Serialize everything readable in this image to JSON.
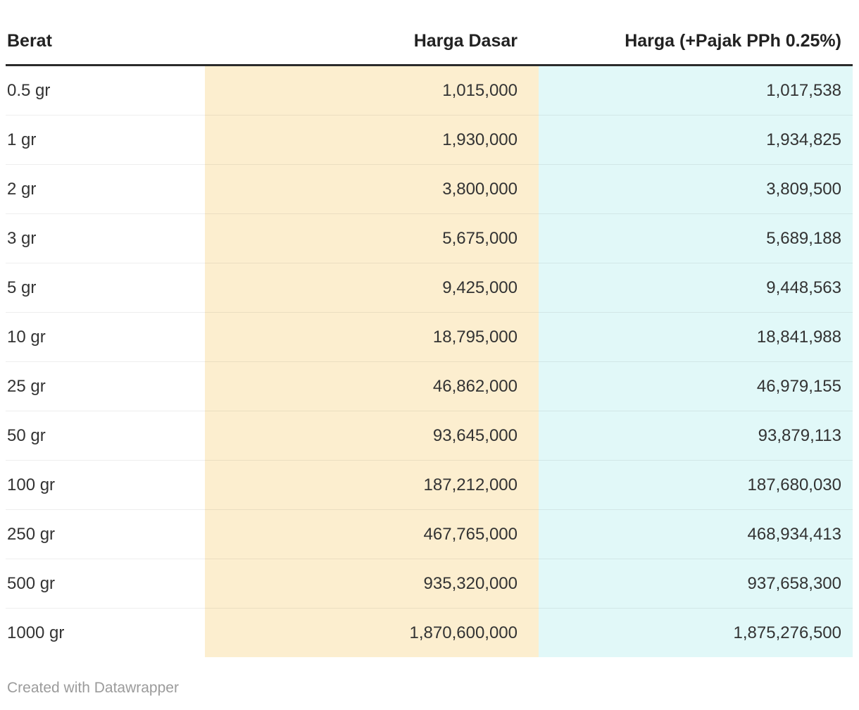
{
  "chart_data": {
    "type": "table",
    "title": "",
    "columns": [
      "Berat",
      "Harga Dasar",
      "Harga (+Pajak PPh 0.25%)"
    ],
    "column_aligns": [
      "left",
      "right",
      "right"
    ],
    "rows": [
      [
        "0.5 gr",
        "1,015,000",
        "1,017,538"
      ],
      [
        "1 gr",
        "1,930,000",
        "1,934,825"
      ],
      [
        "2 gr",
        "3,800,000",
        "3,809,500"
      ],
      [
        "3 gr",
        "5,675,000",
        "5,689,188"
      ],
      [
        "5 gr",
        "9,425,000",
        "9,448,563"
      ],
      [
        "10 gr",
        "18,795,000",
        "18,841,988"
      ],
      [
        "25 gr",
        "46,862,000",
        "46,979,155"
      ],
      [
        "50 gr",
        "93,645,000",
        "93,879,113"
      ],
      [
        "100 gr",
        "187,212,000",
        "187,680,030"
      ],
      [
        "250 gr",
        "467,765,000",
        "468,934,413"
      ],
      [
        "500 gr",
        "935,320,000",
        "937,658,300"
      ],
      [
        "1000 gr",
        "1,870,600,000",
        "1,875,276,500"
      ]
    ],
    "layout": {
      "header_rule_color": "#2b2b2b",
      "row_divider_color": "rgba(0,0,0,0.065)",
      "grid": "horizontal-only"
    }
  },
  "colors": {
    "harga_dasar_column_bg": "#FCEECF",
    "harga_pajak_column_bg": "#E1F8F8",
    "header_text": "#222222",
    "cell_text": "#333333",
    "credit_text": "#9B9B9B"
  },
  "footer": {
    "credit": "Created with Datawrapper"
  }
}
